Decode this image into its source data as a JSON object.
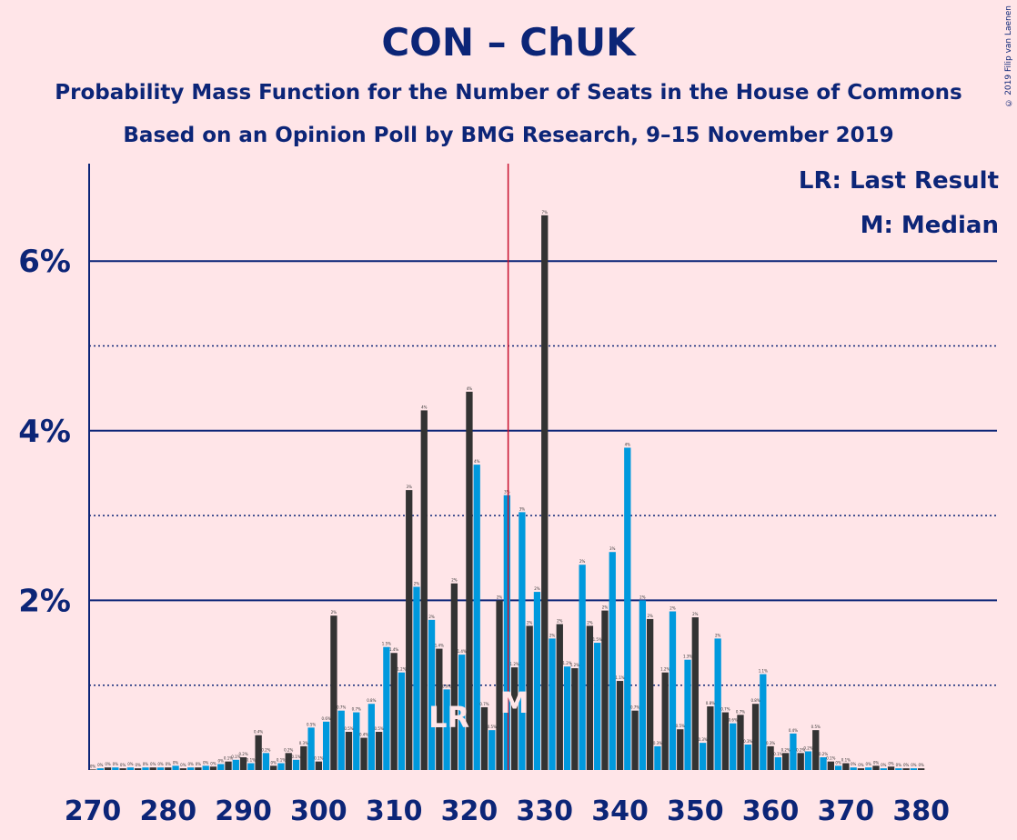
{
  "title": "CON – ChUK",
  "subtitle1": "Probability Mass Function for the Number of Seats in the House of Commons",
  "subtitle2": "Based on an Opinion Poll by BMG Research, 9–15 November 2019",
  "copyright": "© 2019 Filip van Laenen",
  "legend": {
    "lr": "LR: Last Result",
    "m": "M: Median"
  },
  "colors": {
    "background": "#FFE5E8",
    "blue_bar": "#0099DD",
    "dark_bar": "#333333",
    "axis_text": "#0C2577",
    "last_result_line": "#C8102E"
  },
  "chart_data": {
    "type": "bar",
    "x_start": 270,
    "x_end": 380,
    "values": [
      0,
      0.02,
      0.03,
      0.03,
      0.02,
      0.03,
      0.02,
      0.03,
      0.03,
      0.03,
      0.03,
      0.05,
      0.02,
      0.03,
      0.03,
      0.05,
      0.04,
      0.07,
      0.1,
      0.12,
      0.15,
      0.08,
      0.41,
      0.2,
      0.05,
      0.08,
      0.2,
      0.12,
      0.28,
      0.5,
      0.1,
      0.57,
      1.82,
      0.7,
      0.45,
      0.68,
      0.38,
      0.78,
      0.45,
      1.45,
      1.38,
      1.15,
      3.3,
      2.16,
      4.24,
      1.77,
      1.43,
      0.95,
      2.2,
      1.36,
      4.46,
      3.6,
      0.74,
      0.47,
      2.0,
      3.24,
      1.21,
      3.04,
      1.7,
      2.1,
      6.54,
      1.55,
      1.72,
      1.22,
      1.2,
      2.42,
      1.7,
      1.5,
      1.88,
      2.57,
      1.05,
      3.8,
      0.7,
      2.0,
      1.78,
      0.28,
      1.15,
      1.87,
      0.48,
      1.3,
      1.8,
      0.32,
      0.75,
      1.55,
      0.68,
      0.55,
      0.65,
      0.3,
      0.78,
      1.13,
      0.28,
      0.15,
      0.2,
      0.43,
      0.2,
      0.22,
      0.47,
      0.15,
      0.1,
      0.05,
      0.08,
      0.03,
      0.02,
      0.03,
      0.05,
      0.02,
      0.04,
      0.02,
      0.02,
      0.02,
      0.02
    ],
    "bar_labels": [
      "0%",
      "0%",
      "0%",
      "0%",
      "0%",
      "0%",
      "0%",
      "0%",
      "0%",
      "0%",
      "0%",
      "0%",
      "0%",
      "0%",
      "0%",
      "0%",
      "0%",
      "0%",
      "0.1%",
      "0.1%",
      "0.2%",
      "0.1%",
      "0.4%",
      "0.2%",
      "0%",
      "0.1%",
      "0.2%",
      "0.1%",
      "0.3%",
      "0.5%",
      "0.1%",
      "0.6%",
      "2%",
      "0.7%",
      "0.5%",
      "0.7%",
      "0.4%",
      "0.8%",
      "0.5%",
      "1.5%",
      "1.4%",
      "1.2%",
      "3%",
      "2%",
      "4%",
      "2%",
      "1.4%",
      "0.9%",
      "2%",
      "1.4%",
      "4%",
      "4%",
      "0.7%",
      "0.5%",
      "2%",
      "3%",
      "1.2%",
      "3%",
      "2%",
      "2%",
      "7%",
      "2%",
      "2%",
      "1.2%",
      "1.2%",
      "2%",
      "2%",
      "1.5%",
      "2%",
      "3%",
      "1.1%",
      "4%",
      "0.7%",
      "2%",
      "2%",
      "0.3%",
      "1.2%",
      "2%",
      "0.5%",
      "1.3%",
      "2%",
      "0.3%",
      "0.8%",
      "2%",
      "0.7%",
      "0.6%",
      "0.7%",
      "0.3%",
      "0.8%",
      "1.1%",
      "0.3%",
      "0.1%",
      "0.2%",
      "0.4%",
      "0.2%",
      "0.2%",
      "0.5%",
      "0.2%",
      "0.1%",
      "0%",
      "0.1%",
      "0%",
      "0%",
      "0%",
      "0%",
      "0%",
      "0%",
      "0%",
      "0%",
      "0%",
      "0%"
    ],
    "x_ticks": [
      "270",
      "280",
      "290",
      "300",
      "310",
      "320",
      "330",
      "340",
      "350",
      "360",
      "370",
      "380"
    ],
    "y_ticks": [
      "2%",
      "4%",
      "6%"
    ],
    "ylim": [
      0,
      7
    ],
    "last_result": 326,
    "median": 326,
    "markers": {
      "last_result": "LR",
      "median": "M"
    },
    "grid": true
  }
}
